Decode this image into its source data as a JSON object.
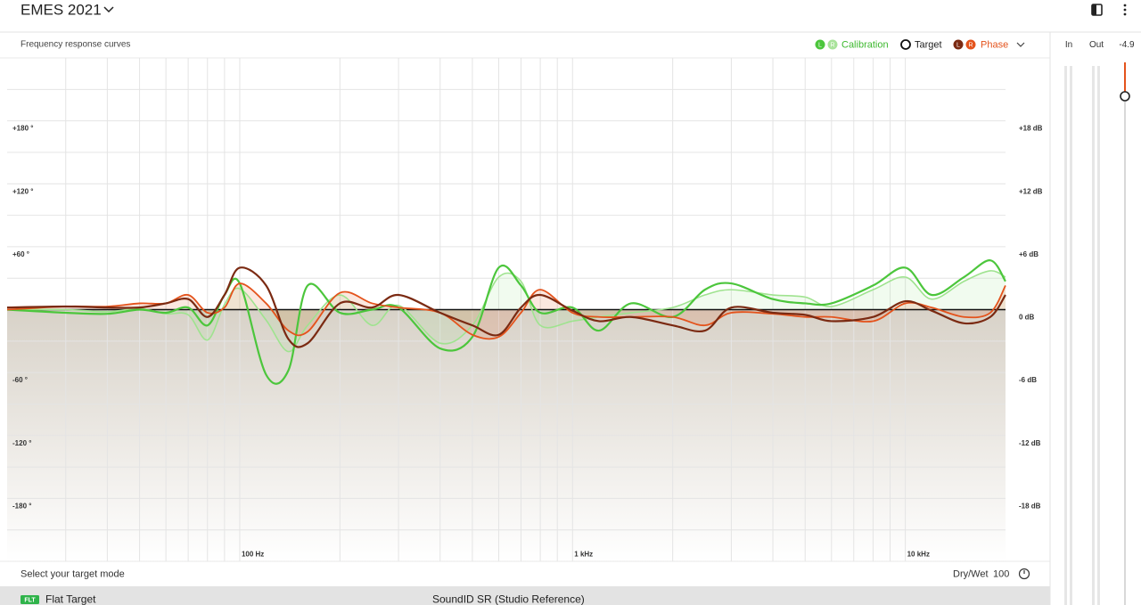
{
  "header": {
    "title": "EMES 2021"
  },
  "panel": {
    "title": "Frequency response curves"
  },
  "legend": {
    "calibration": {
      "label": "Calibration",
      "badges": [
        "L",
        "R"
      ]
    },
    "target": "Target",
    "phase": {
      "label": "Phase",
      "badges": [
        "L",
        "R"
      ]
    }
  },
  "meters": {
    "in": "In",
    "out": "Out",
    "out_value": -4.9
  },
  "footer": {
    "prompt": "Select your target mode",
    "dry_wet_label": "Dry/Wet",
    "dry_wet_value": 100,
    "mode": {
      "badge": "FLT",
      "name": "Flat Target"
    },
    "reference": "SoundID SR (Studio Reference)"
  },
  "chart_data": {
    "type": "line",
    "log_x": true,
    "xlim": [
      20,
      20000
    ],
    "xticks": [
      {
        "value": 100,
        "label": "100 Hz"
      },
      {
        "value": 1000,
        "label": "1 kHz"
      },
      {
        "value": 10000,
        "label": "10 kHz"
      }
    ],
    "xgrid": [
      30,
      40,
      50,
      60,
      70,
      80,
      90,
      100,
      200,
      300,
      400,
      500,
      600,
      700,
      800,
      900,
      1000,
      2000,
      3000,
      4000,
      5000,
      6000,
      7000,
      8000,
      9000,
      10000
    ],
    "ylim": [
      -24,
      24
    ],
    "yticks": [
      {
        "value": 18,
        "label": "+18 dB"
      },
      {
        "value": 12,
        "label": "+12 dB"
      },
      {
        "value": 6,
        "label": "+6 dB"
      },
      {
        "value": 0,
        "label": "0 dB"
      },
      {
        "value": -6,
        "label": "-6 dB"
      },
      {
        "value": -12,
        "label": "-12 dB"
      },
      {
        "value": -18,
        "label": "-18 dB"
      }
    ],
    "ygrid": [
      21,
      18,
      15,
      12,
      9,
      6,
      3,
      -3,
      -6,
      -9,
      -12,
      -15,
      -18,
      -21
    ],
    "y2lim": [
      -240,
      240
    ],
    "y2ticks": [
      {
        "value": 180,
        "label": "+180 °"
      },
      {
        "value": 120,
        "label": "+120 °"
      },
      {
        "value": 60,
        "label": "+60 °"
      },
      {
        "value": -60,
        "label": "-60 °"
      },
      {
        "value": -120,
        "label": "-120 °"
      },
      {
        "value": -180,
        "label": "-180 °"
      }
    ],
    "target": 0,
    "x": [
      20,
      30,
      40,
      50,
      60,
      70,
      80,
      90,
      100,
      120,
      140,
      160,
      200,
      250,
      300,
      400,
      500,
      600,
      700,
      800,
      1000,
      1200,
      1500,
      2000,
      2500,
      3000,
      4000,
      5000,
      6000,
      8000,
      10000,
      12000,
      15000,
      18000,
      20000
    ],
    "series": [
      {
        "color": "#9fe38f",
        "fill": true,
        "width": 1.6,
        "values": [
          0,
          0,
          -0.2,
          0.1,
          -0.4,
          -0.5,
          -2.9,
          0.5,
          2.0,
          -1.0,
          -4.0,
          -1.5,
          1.4,
          -1.5,
          0.4,
          -3.2,
          -1.5,
          3.1,
          2.7,
          -1.5,
          -1.1,
          -0.7,
          -0.3,
          0.2,
          1.4,
          1.9,
          1.4,
          1.2,
          0.3,
          1.9,
          3.1,
          1.0,
          2.7,
          3.7,
          3.1
        ]
      },
      {
        "color": "#4cc63c",
        "fill": false,
        "width": 2.2,
        "values": [
          0,
          -0.3,
          -0.4,
          0,
          -0.3,
          0.2,
          -1.5,
          1.4,
          2.5,
          -6.2,
          -5.8,
          2.3,
          -0.3,
          0,
          0.2,
          -3.7,
          -2.6,
          4.0,
          2.3,
          -0.3,
          0.2,
          -2.0,
          0.6,
          -0.7,
          1.9,
          2.5,
          1.0,
          0.6,
          0.6,
          2.3,
          4.0,
          1.4,
          3.1,
          4.7,
          2.7
        ]
      },
      {
        "color": "#e4531c",
        "fill": true,
        "width": 1.8,
        "axis": "y2",
        "values": [
          0,
          3,
          3,
          6,
          6,
          14,
          -3,
          2,
          25,
          6,
          -20,
          -21,
          16,
          6,
          2,
          -3,
          -24,
          -26,
          -3,
          19,
          -3,
          -7,
          -7,
          -7,
          -15,
          -3,
          -4,
          -7,
          -7,
          -11,
          6,
          2,
          -7,
          -3,
          23
        ]
      },
      {
        "color": "#7b2a12",
        "fill": false,
        "width": 2.2,
        "axis": "y2",
        "values": [
          2,
          3,
          2,
          2,
          6,
          10,
          -7,
          14,
          40,
          23,
          -28,
          -32,
          6,
          2,
          14,
          -3,
          -15,
          -24,
          2,
          14,
          -1,
          -11,
          -7,
          -15,
          -20,
          2,
          -3,
          -5,
          -11,
          -7,
          8,
          -1,
          -13,
          -7,
          14
        ]
      }
    ]
  }
}
